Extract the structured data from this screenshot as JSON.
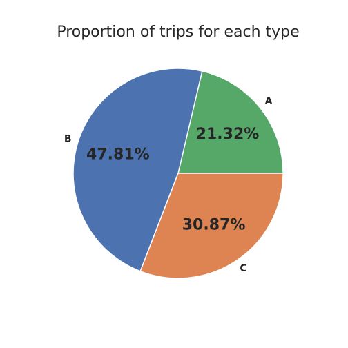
{
  "chart_data": {
    "type": "pie",
    "title": "Proportion of trips for each type",
    "start_angle_deg": 0,
    "direction": "counterclockwise",
    "slices": [
      {
        "label": "A",
        "value": 21.32,
        "pct_label": "21.32%",
        "color": "#55a868"
      },
      {
        "label": "B",
        "value": 47.81,
        "pct_label": "47.81%",
        "color": "#4c72b0"
      },
      {
        "label": "C",
        "value": 30.87,
        "pct_label": "30.87%",
        "color": "#dd8452"
      }
    ],
    "slice_border_color": "#ffffff"
  }
}
